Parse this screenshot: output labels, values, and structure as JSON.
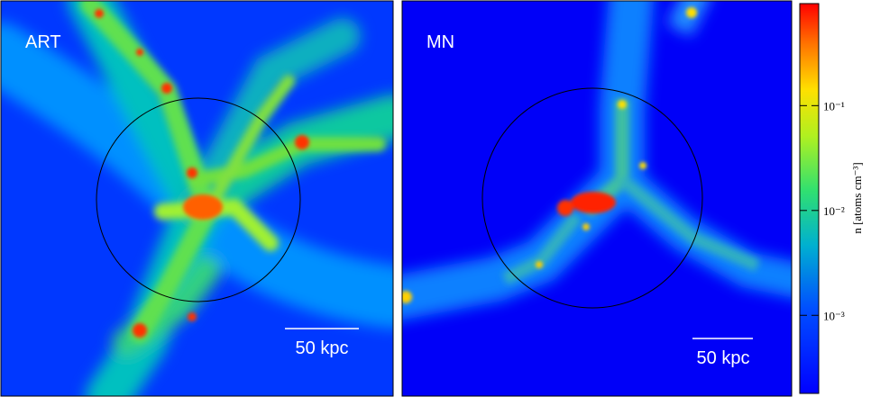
{
  "panels": [
    {
      "label": "ART",
      "scale_bar": "50 kpc"
    },
    {
      "label": "MN",
      "scale_bar": "50 kpc"
    }
  ],
  "colorbar": {
    "label": "n [atoms cm⁻³]",
    "scale": "log",
    "lim": [
      0.00018,
      0.94
    ],
    "ticks": [
      {
        "value": 0.1,
        "label": "10⁻¹"
      },
      {
        "value": 0.01,
        "label": "10⁻²"
      },
      {
        "value": 0.001,
        "label": "10⁻³"
      }
    ]
  }
}
